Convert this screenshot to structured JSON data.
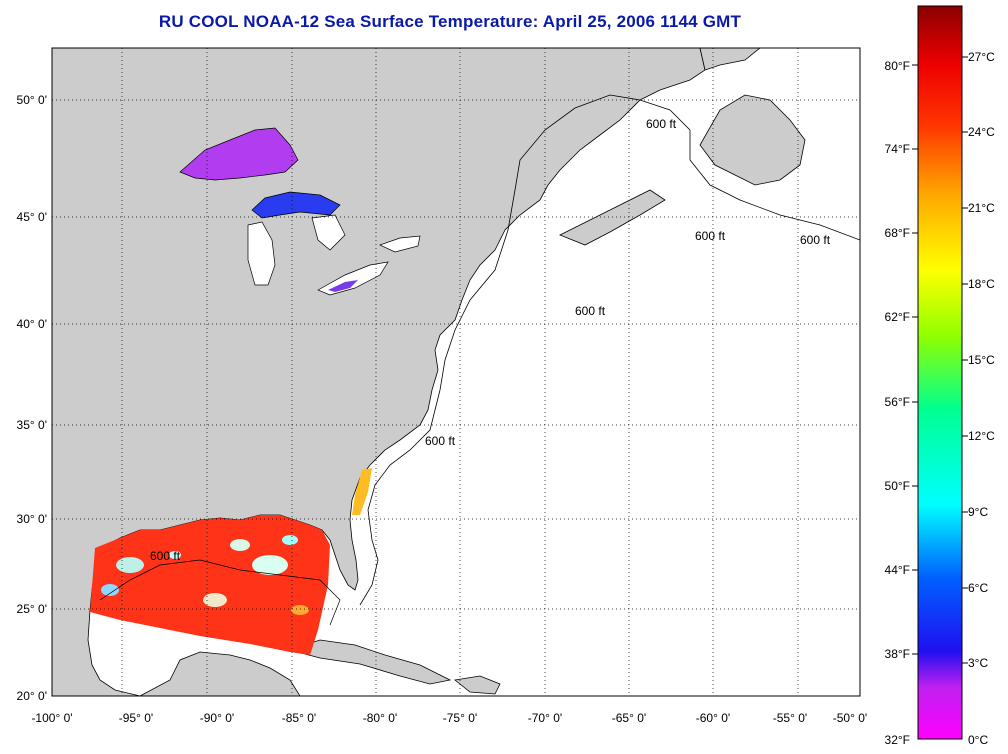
{
  "title": "RU COOL  NOAA-12  Sea Surface Temperature:  April 25, 2006 1144 GMT",
  "map": {
    "lat_labels": [
      "50° 0'",
      "45° 0'",
      "40° 0'",
      "35° 0'",
      "30° 0'",
      "25° 0'",
      "20° 0'"
    ],
    "lon_labels": [
      "-100° 0'",
      "-95° 0'",
      "-90° 0'",
      "-85° 0'",
      "-80° 0'",
      "-75° 0'",
      "-70° 0'",
      "-65° 0'",
      "-60° 0'",
      "-55° 0'",
      "-50° 0'"
    ],
    "contour_label": "600 ft",
    "colors": {
      "land": "#cccccc",
      "ocean": "#ffffff",
      "grid": "#000000",
      "gulf_sst": "#ff3318",
      "lake_superior": "#b23cf0",
      "lake_michigan": "#2a3cf0",
      "florida_coastal": "#ffbb22"
    }
  },
  "colorbar": {
    "fahrenheit_labels": [
      "80°F",
      "74°F",
      "68°F",
      "62°F",
      "56°F",
      "50°F",
      "44°F",
      "38°F",
      "32°F"
    ],
    "celsius_labels": [
      "27°C",
      "24°C",
      "21°C",
      "18°C",
      "15°C",
      "12°C",
      "9°C",
      "6°C",
      "3°C",
      "0°C"
    ],
    "gradient_stops": [
      "#ff00ff",
      "#8a2be2",
      "#0000ff",
      "#00aaff",
      "#00ffff",
      "#00ff88",
      "#88ff00",
      "#ffff00",
      "#ffaa00",
      "#ff4400",
      "#ee0000",
      "#990000"
    ]
  }
}
